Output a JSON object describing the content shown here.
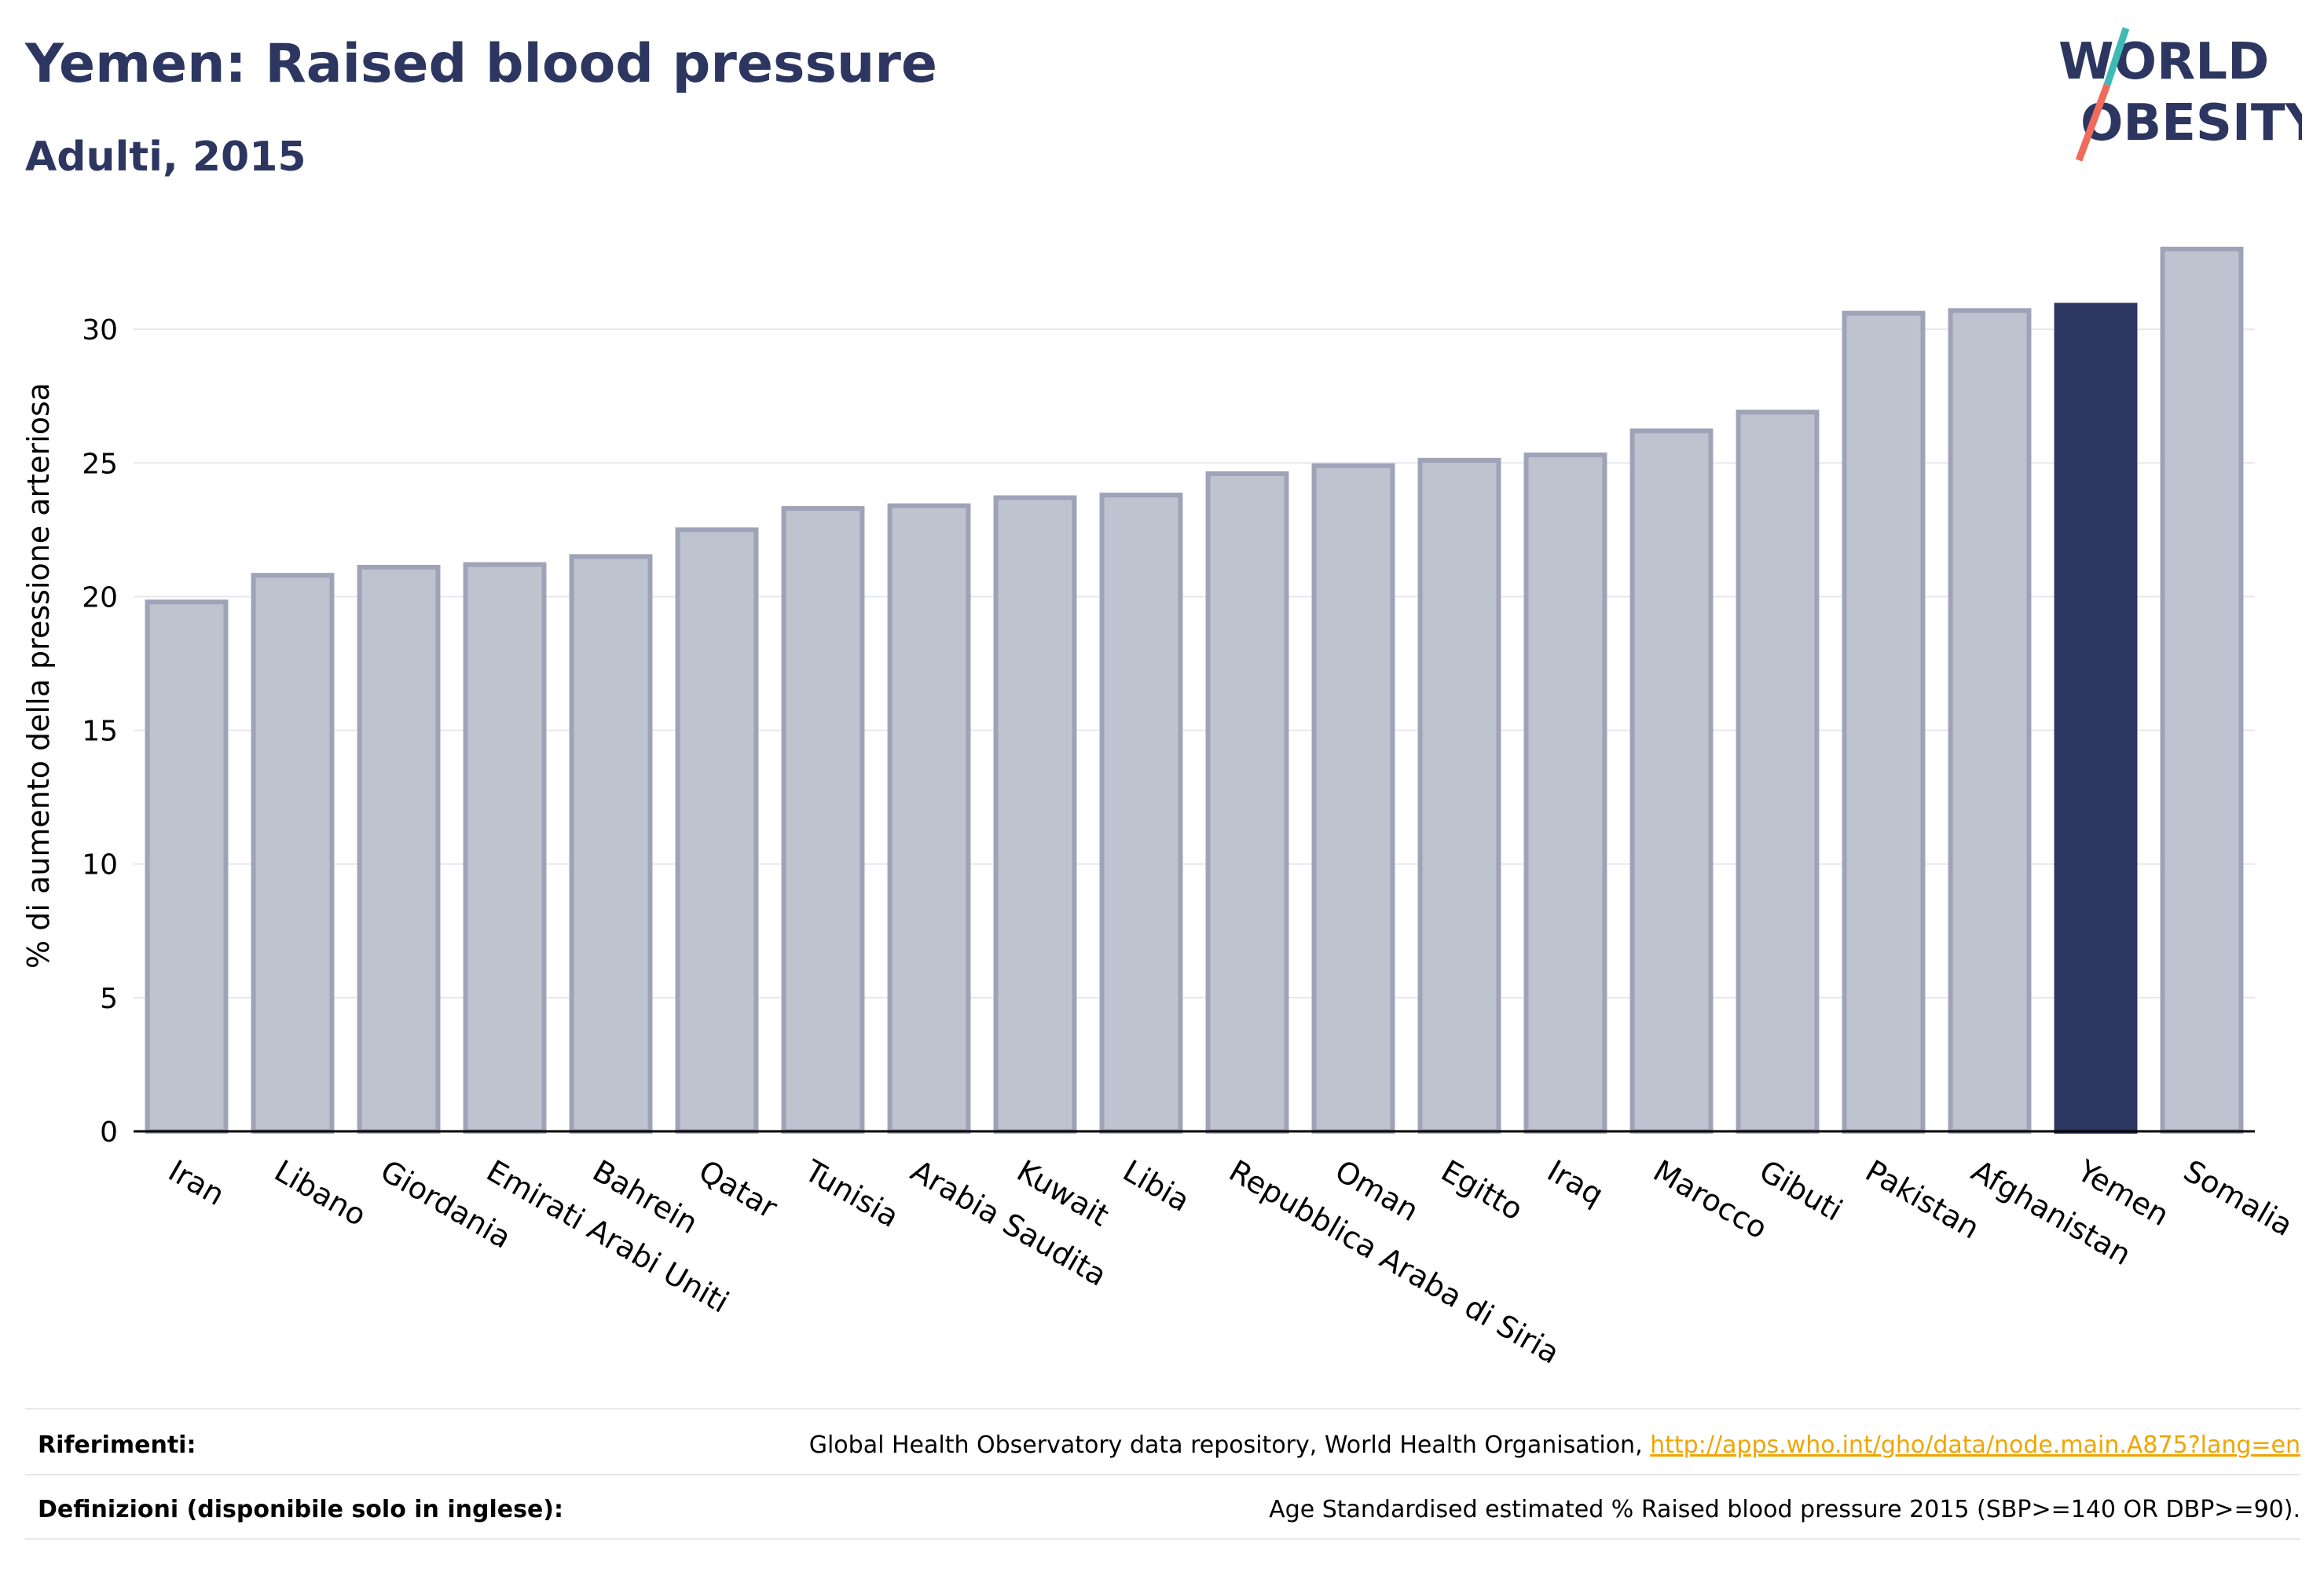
{
  "header": {
    "title": "Yemen: Raised blood pressure",
    "subtitle": "Adulti, 2015"
  },
  "logo": {
    "line1": "WORLD",
    "line2": "OBESITY",
    "icon": "world-obesity-logo"
  },
  "chart_data": {
    "type": "bar",
    "ylabel": "% di aumento della pressione arteriosa",
    "ylim": [
      0,
      33.5
    ],
    "yticks": [
      0,
      5,
      10,
      15,
      20,
      25,
      30
    ],
    "grid": true,
    "categories": [
      "Iran",
      "Libano",
      "Giordania",
      "Emirati Arabi Uniti",
      "Bahrein",
      "Qatar",
      "Tunisia",
      "Arabia Saudita",
      "Kuwait",
      "Libia",
      "Repubblica Araba di Siria",
      "Oman",
      "Egitto",
      "Iraq",
      "Marocco",
      "Gibuti",
      "Pakistan",
      "Afghanistan",
      "Yemen",
      "Somalia"
    ],
    "values": [
      19.8,
      20.8,
      21.1,
      21.2,
      21.5,
      22.5,
      23.3,
      23.4,
      23.7,
      23.8,
      24.6,
      24.9,
      25.1,
      25.3,
      26.2,
      26.9,
      30.6,
      30.7,
      30.9,
      33.0
    ],
    "highlight": "Yemen",
    "colors": {
      "bar": "#bfc2cf",
      "bar_border": "#9ea3b8",
      "highlight": "#2c3660",
      "grid": "#e6e8ef",
      "axis": "#000000"
    }
  },
  "footer": {
    "references_label": "Riferimenti:",
    "references_text": "Global Health Observatory data repository, World Health Organisation, ",
    "references_link": "http://apps.who.int/gho/data/node.main.A875?lang=en",
    "definitions_label": "Definizioni (disponibile solo in inglese):",
    "definitions_text": "Age Standardised estimated % Raised blood pressure 2015 (SBP>=140 OR DBP>=90)."
  }
}
